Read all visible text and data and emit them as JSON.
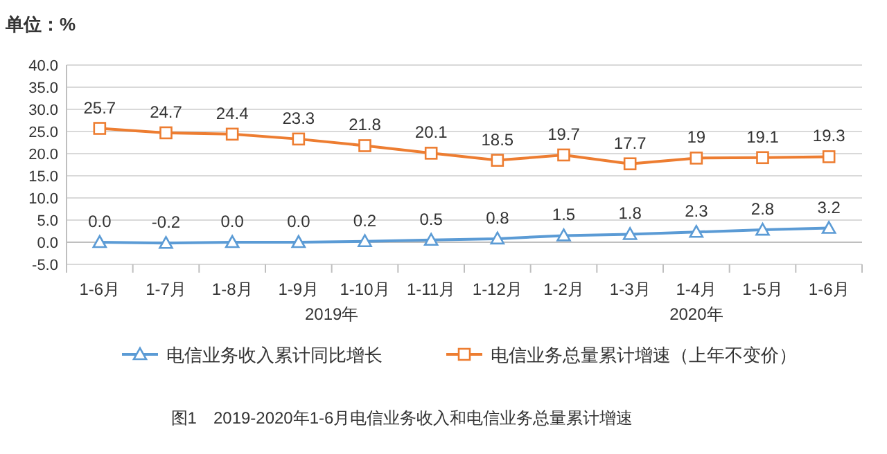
{
  "chart_data": {
    "type": "line",
    "ylabel": "单位：%",
    "categories": [
      "1-6月",
      "1-7月",
      "1-8月",
      "1-9月",
      "1-10月",
      "1-11月",
      "1-12月",
      "1-2月",
      "1-3月",
      "1-4月",
      "1-5月",
      "1-6月"
    ],
    "series": [
      {
        "name": "电信业务收入累计同比增长",
        "color": "#5b9bd5",
        "marker": "triangle",
        "values": [
          0.0,
          -0.2,
          0.0,
          0.0,
          0.2,
          0.5,
          0.8,
          1.5,
          1.8,
          2.3,
          2.8,
          3.2
        ],
        "value_labels": [
          "0.0",
          "-0.2",
          "0.0",
          "0.0",
          "0.2",
          "0.5",
          "0.8",
          "1.5",
          "1.8",
          "2.3",
          "2.8",
          "3.2"
        ]
      },
      {
        "name": "电信业务总量累计增速（上年不变价）",
        "color": "#ed7d31",
        "marker": "square",
        "values": [
          25.7,
          24.7,
          24.4,
          23.3,
          21.8,
          20.1,
          18.5,
          19.7,
          17.7,
          19,
          19.1,
          19.3
        ],
        "value_labels": [
          "25.7",
          "24.7",
          "24.4",
          "23.3",
          "21.8",
          "20.1",
          "18.5",
          "19.7",
          "17.7",
          "19",
          "19.1",
          "19.3"
        ]
      }
    ],
    "ylim": [
      -5,
      40
    ],
    "yticks": [
      {
        "value": -5,
        "label": "-5.0"
      },
      {
        "value": 0,
        "label": "0.0"
      },
      {
        "value": 5,
        "label": "5.0"
      },
      {
        "value": 10,
        "label": "10.0"
      },
      {
        "value": 15,
        "label": "15.0"
      },
      {
        "value": 20,
        "label": "20.0"
      },
      {
        "value": 25,
        "label": "25.0"
      },
      {
        "value": 30,
        "label": "30.0"
      },
      {
        "value": 35,
        "label": "35.0"
      },
      {
        "value": 40,
        "label": "40.0"
      }
    ],
    "grid": "y",
    "legend": "bottom",
    "annotations": [
      "2019年",
      "2020年",
      "图1　2019-2020年1-6月电信业务收入和电信业务总量累计增速"
    ]
  }
}
